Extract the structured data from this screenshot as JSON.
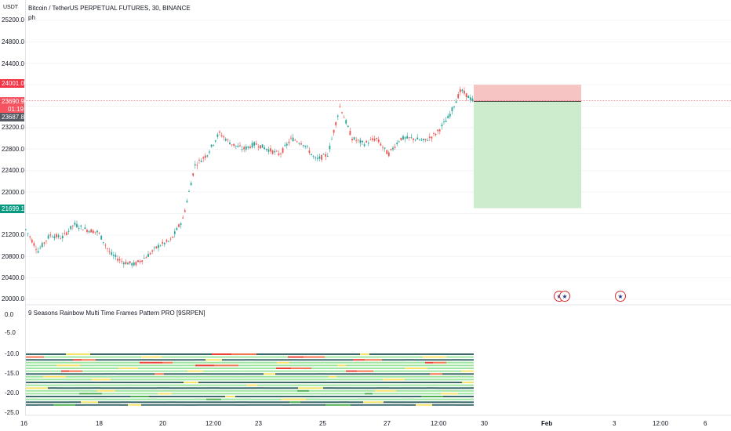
{
  "symbol": {
    "title": "Bitcoin / TetherUS PERPETUAL FUTURES, 30, BINANCE",
    "indicator_short": "ph",
    "currency": "USDT"
  },
  "price_axis": {
    "ticks": [
      "25200.0",
      "24800.0",
      "24400.0",
      "23200.0",
      "22800.0",
      "22400.0",
      "22000.0",
      "21200.0",
      "20800.0",
      "20400.0",
      "20000.0"
    ],
    "tags": {
      "stop": {
        "value": "24001.0",
        "color": "#f23645"
      },
      "last": {
        "value": "23690.9",
        "sub": "01:19",
        "color": "#f7525f"
      },
      "prev": {
        "value": "23687.8",
        "color": "#555a63"
      },
      "target": {
        "value": "21699.1",
        "color": "#089981"
      }
    }
  },
  "indicator": {
    "title": "9 Seasons Rainbow Multi Time Frames Pattern PRO [9SRPEN]",
    "ticks": [
      "0.0",
      "-5.0",
      "-10.0",
      "-15.0",
      "-20.0",
      "-25.0"
    ],
    "colors": {
      "dark": "#3d6b6b",
      "light": "#9ee6a0",
      "green": "#4caf50",
      "yellow": "#f5e36a",
      "orange": "#f07850",
      "red": "#e8443a"
    }
  },
  "time_axis": {
    "labels": [
      "16",
      "18",
      "20",
      "12:00",
      "23",
      "25",
      "27",
      "12:00",
      "30",
      "Feb",
      "3",
      "12:00",
      "6"
    ]
  },
  "events": {
    "flag_icon": "us-flag-icon"
  },
  "chart_data": {
    "type": "candlestick",
    "description_series": "BTCUSDT 30m price path",
    "ylim": [
      20000,
      25300
    ],
    "close_path": [
      21300,
      20900,
      21200,
      21150,
      21400,
      21300,
      21250,
      20850,
      20700,
      20650,
      20800,
      21000,
      21100,
      21500,
      22500,
      22700,
      23100,
      22900,
      22800,
      22900,
      22800,
      22700,
      23000,
      22900,
      22600,
      22700,
      23600,
      23000,
      22900,
      23000,
      22700,
      23000,
      23000,
      22950,
      23100,
      23400,
      23900,
      23700
    ],
    "position": {
      "entry": 23687.8,
      "stop": 24001.0,
      "target": 21699.1
    },
    "indicator_ylim": [
      -25,
      0
    ]
  }
}
